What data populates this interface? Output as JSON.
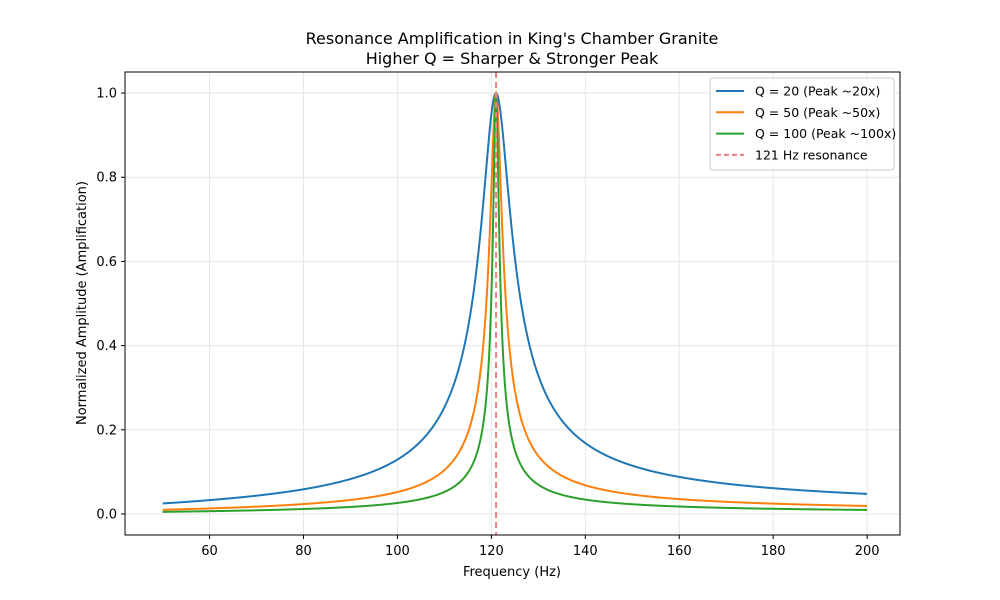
{
  "chart_data": {
    "type": "line",
    "title": "Resonance Amplification in King's Chamber Granite",
    "subtitle": "Higher Q = Sharper & Stronger Peak",
    "xlabel": "Frequency (Hz)",
    "ylabel": "Normalized Amplitude (Amplification)",
    "xlim": [
      42,
      207
    ],
    "ylim": [
      -0.05,
      1.05
    ],
    "x_ticks": [
      60,
      80,
      100,
      120,
      140,
      160,
      180,
      200
    ],
    "y_ticks": [
      0.0,
      0.2,
      0.4,
      0.6,
      0.8,
      1.0
    ],
    "x_tick_labels": [
      "60",
      "80",
      "100",
      "120",
      "140",
      "160",
      "180",
      "200"
    ],
    "y_tick_labels": [
      "0.0",
      "0.2",
      "0.4",
      "0.6",
      "0.8",
      "1.0"
    ],
    "grid": true,
    "legend_position": "top-right",
    "resonance_frequency": 121,
    "x_range": [
      50,
      200
    ],
    "series": [
      {
        "name": "Q = 20 (Peak ~20x)",
        "q": 20,
        "color": "#1f77b4",
        "style": "solid"
      },
      {
        "name": "Q = 50 (Peak ~50x)",
        "q": 50,
        "color": "#ff7f0e",
        "style": "solid"
      },
      {
        "name": "Q = 100 (Peak ~100x)",
        "q": 100,
        "color": "#2ca02c",
        "style": "solid"
      }
    ],
    "reference_line": {
      "name": "121 Hz resonance",
      "x": 121,
      "color": "#f08080",
      "style": "dashed"
    }
  }
}
